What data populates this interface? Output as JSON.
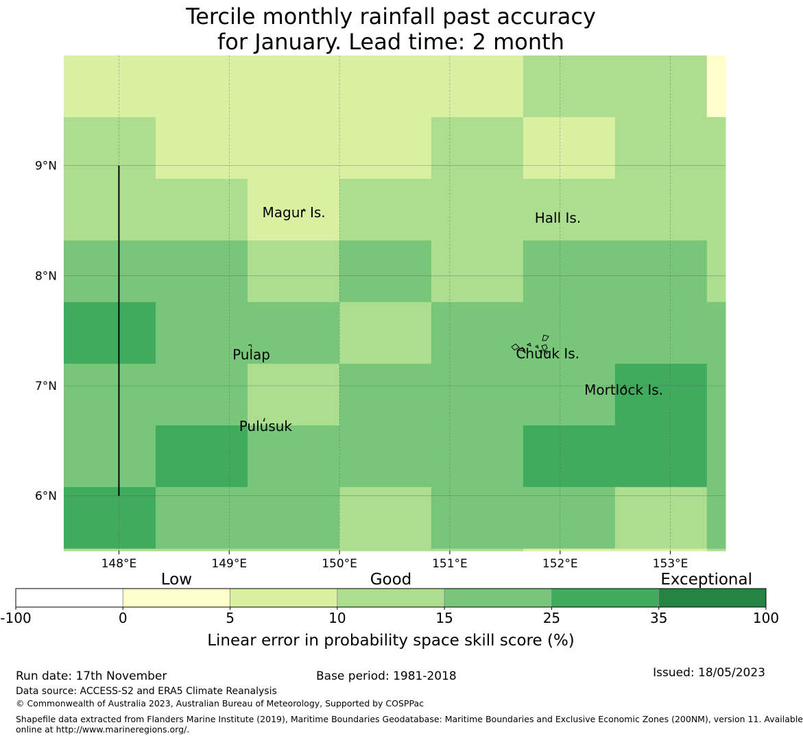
{
  "title": {
    "line1": "Tercile monthly rainfall past accuracy",
    "line2": "for January. Lead time: 2 month"
  },
  "map": {
    "lon_range": [
      147.5,
      153.5
    ],
    "lat_range": [
      5.5,
      10.0
    ],
    "lon_ticks": [
      {
        "value": 148,
        "label": "148°E"
      },
      {
        "value": 149,
        "label": "149°E"
      },
      {
        "value": 150,
        "label": "150°E"
      },
      {
        "value": 151,
        "label": "151°E"
      },
      {
        "value": 152,
        "label": "152°E"
      },
      {
        "value": 153,
        "label": "153°E"
      }
    ],
    "lat_ticks": [
      {
        "value": 9,
        "label": "9°N"
      },
      {
        "value": 8,
        "label": "8°N"
      },
      {
        "value": 7,
        "label": "7°N"
      },
      {
        "value": 6,
        "label": "6°N"
      }
    ],
    "grid_cols_lon_left": 147.5,
    "grid_cell_lon": 0.833,
    "grid_cells_lat": [
      10.0,
      9.44,
      8.88,
      8.32,
      7.76,
      7.2,
      6.64,
      6.08,
      5.52,
      5.5
    ],
    "grid_classes": [
      [
        1,
        1,
        1,
        1,
        1,
        2,
        2,
        0
      ],
      [
        2,
        1,
        1,
        1,
        2,
        1,
        2,
        2
      ],
      [
        2,
        2,
        1,
        2,
        2,
        2,
        2,
        2
      ],
      [
        3,
        3,
        2,
        3,
        2,
        3,
        3,
        2
      ],
      [
        4,
        3,
        3,
        2,
        3,
        3,
        3,
        3
      ],
      [
        3,
        3,
        2,
        3,
        3,
        3,
        4,
        3
      ],
      [
        3,
        4,
        3,
        3,
        3,
        4,
        4,
        3
      ],
      [
        4,
        3,
        3,
        2,
        3,
        3,
        2,
        3
      ],
      [
        2,
        2,
        2,
        2,
        2,
        1,
        1,
        2
      ]
    ],
    "eez_line": {
      "lon": 148.0,
      "lat_from": 9.0,
      "lat_to": 6.0
    },
    "islands": [
      {
        "name": "Magur Is.",
        "lon": 149.3,
        "lat": 8.53
      },
      {
        "name": "Hall Is.",
        "lon": 151.77,
        "lat": 8.48
      },
      {
        "name": "Pulap",
        "lon": 149.03,
        "lat": 7.24
      },
      {
        "name": "Chuuk Is.",
        "lon": 151.6,
        "lat": 7.25
      },
      {
        "name": "Mortlock Is.",
        "lon": 152.22,
        "lat": 6.92
      },
      {
        "name": "Pulusuk",
        "lon": 149.09,
        "lat": 6.59
      }
    ]
  },
  "legend": {
    "colors": [
      "#ffffff",
      "#ffffcc",
      "#d9f0a3",
      "#addd8e",
      "#78c679",
      "#41ab5d",
      "#238443"
    ],
    "ticks": [
      "-100",
      "0",
      "5",
      "10",
      "15",
      "25",
      "35",
      "100"
    ],
    "category_labels": [
      "Low",
      "Good",
      "Exceptional"
    ],
    "xlabel": "Linear error in probability space skill score (%)"
  },
  "footer": {
    "run_date": "Run date: 17th November",
    "base_period": "Base period: 1981-2018",
    "issued": "Issued: 18/05/2023",
    "data_source": "Data source: ACCESS-S2 and ERA5 Climate Reanalysis",
    "copyright": "© Commonwealth of Australia 2023, Australian Bureau of Meteorology, Supported by COSPPac",
    "shapefile_line1": "Shapefile data extracted from Flanders Marine Institute (2019), Maritime Boundaries Geodatabase: Maritime Boundaries and Exclusive Economic Zones (200NM), version 11. Available",
    "shapefile_line2": "online at http://www.marineregions.org/."
  }
}
